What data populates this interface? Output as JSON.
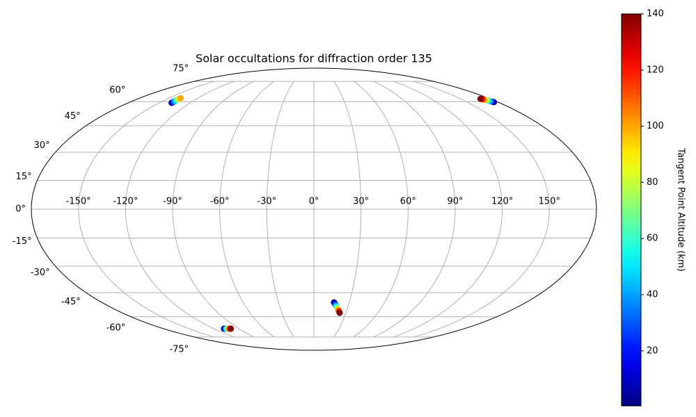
{
  "chart_data": {
    "type": "scatter",
    "projection": "mollweide",
    "title": "Solar occultations for diffraction order 135",
    "xlim": [
      -180,
      180
    ],
    "ylim": [
      -90,
      90
    ],
    "xticks": [
      {
        "value": -150,
        "label": "-150°"
      },
      {
        "value": -120,
        "label": "-120°"
      },
      {
        "value": -90,
        "label": "-90°"
      },
      {
        "value": -60,
        "label": "-60°"
      },
      {
        "value": -30,
        "label": "-30°"
      },
      {
        "value": 0,
        "label": "0°"
      },
      {
        "value": 30,
        "label": "30°"
      },
      {
        "value": 60,
        "label": "60°"
      },
      {
        "value": 90,
        "label": "90°"
      },
      {
        "value": 120,
        "label": "120°"
      },
      {
        "value": 150,
        "label": "150°"
      }
    ],
    "yticks": [
      {
        "value": -75,
        "label": "-75°"
      },
      {
        "value": -60,
        "label": "-60°"
      },
      {
        "value": -45,
        "label": "-45°"
      },
      {
        "value": -30,
        "label": "-30°"
      },
      {
        "value": -15,
        "label": "-15°"
      },
      {
        "value": 0,
        "label": "0°"
      },
      {
        "value": 15,
        "label": "15°"
      },
      {
        "value": 30,
        "label": "30°"
      },
      {
        "value": 45,
        "label": "45°"
      },
      {
        "value": 60,
        "label": "60°"
      },
      {
        "value": 75,
        "label": "75°"
      }
    ],
    "grid": true,
    "x": [
      -138,
      -138,
      -138,
      -137.8,
      -137.8,
      -137.6,
      -137.6,
      -137.5,
      176.2,
      175.4,
      174.5,
      173.7,
      172.9,
      172.0,
      171.2,
      170.4,
      -107.7,
      -106.5,
      -105.3,
      -104.1,
      -103.0,
      -101.8,
      -100.6,
      -99.4,
      17.1,
      18.1,
      19.1,
      20.1,
      21.2,
      22.2,
      23.2,
      24.2
    ],
    "y": [
      59.2,
      59.6,
      60.1,
      60.5,
      61.0,
      61.5,
      61.9,
      62.3,
      59.7,
      60.0,
      60.3,
      60.7,
      61.0,
      61.3,
      61.6,
      61.9,
      -68.4,
      -68.4,
      -68.4,
      -68.4,
      -68.4,
      -68.4,
      -68.4,
      -68.4,
      -50.8,
      -51.7,
      -52.7,
      -53.6,
      -54.6,
      -55.5,
      -56.4,
      -57.4
    ],
    "c": [
      1,
      15,
      30,
      45,
      60,
      75,
      90,
      100,
      1,
      20,
      40,
      60,
      80,
      100,
      120,
      140,
      1,
      20,
      40,
      60,
      80,
      100,
      120,
      140,
      1,
      20,
      40,
      60,
      80,
      100,
      120,
      140
    ],
    "colormap": "jet",
    "colorbar": {
      "label": "Tangent Point Altitude (km)",
      "lim": [
        0.4,
        140
      ],
      "ticks": [
        20,
        40,
        60,
        80,
        100,
        120,
        140
      ]
    }
  }
}
